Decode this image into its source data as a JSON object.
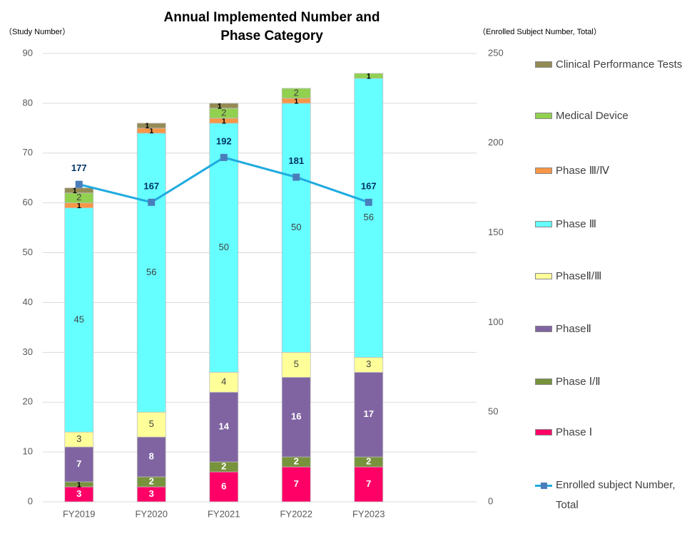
{
  "chart_data": {
    "type": "bar",
    "stacked": true,
    "title": "Annual Implemented Number and Phase Category",
    "y_label": "（Study Number）",
    "y2_label": "（Enrolled Subject Number, Total）",
    "categories": [
      "FY2019",
      "FY2020",
      "FY2021",
      "FY2022",
      "FY2023"
    ],
    "ylim": [
      0,
      90
    ],
    "yticks": [
      0,
      10,
      20,
      30,
      40,
      50,
      60,
      70,
      80,
      90
    ],
    "y2lim": [
      0,
      250
    ],
    "y2ticks": [
      0,
      50,
      100,
      150,
      200,
      250
    ],
    "grid": true,
    "legend": "right",
    "series": [
      {
        "name": "Phase Ⅰ",
        "color": "#ff0066",
        "values": [
          3,
          3,
          6,
          7,
          7
        ]
      },
      {
        "name": "Phase Ⅰ/Ⅱ",
        "color": "#77933c",
        "values": [
          1,
          2,
          2,
          2,
          2
        ]
      },
      {
        "name": "PhaseⅡ",
        "color": "#8064a2",
        "values": [
          7,
          8,
          14,
          16,
          17
        ]
      },
      {
        "name": "PhaseⅡ/Ⅲ",
        "color": "#ffff99",
        "values": [
          3,
          5,
          4,
          5,
          3
        ]
      },
      {
        "name": "Phase Ⅲ",
        "color": "#66ffff",
        "values": [
          45,
          56,
          50,
          50,
          56
        ]
      },
      {
        "name": "Phase Ⅲ/Ⅳ",
        "color": "#f79646",
        "values": [
          1,
          1,
          1,
          1,
          null
        ]
      },
      {
        "name": "Medical Device",
        "color": "#92d050",
        "values": [
          2,
          null,
          2,
          2,
          1
        ]
      },
      {
        "name": "Clinical Performance Tests",
        "color": "#948a54",
        "values": [
          1,
          1,
          1,
          null,
          null
        ]
      },
      {
        "name": "Enrolled subject Number, Total",
        "color": "#1faadf",
        "marker_color": "#4a7ebb",
        "type": "line",
        "axis": "y2",
        "values": [
          177,
          167,
          192,
          181,
          167
        ]
      }
    ]
  }
}
